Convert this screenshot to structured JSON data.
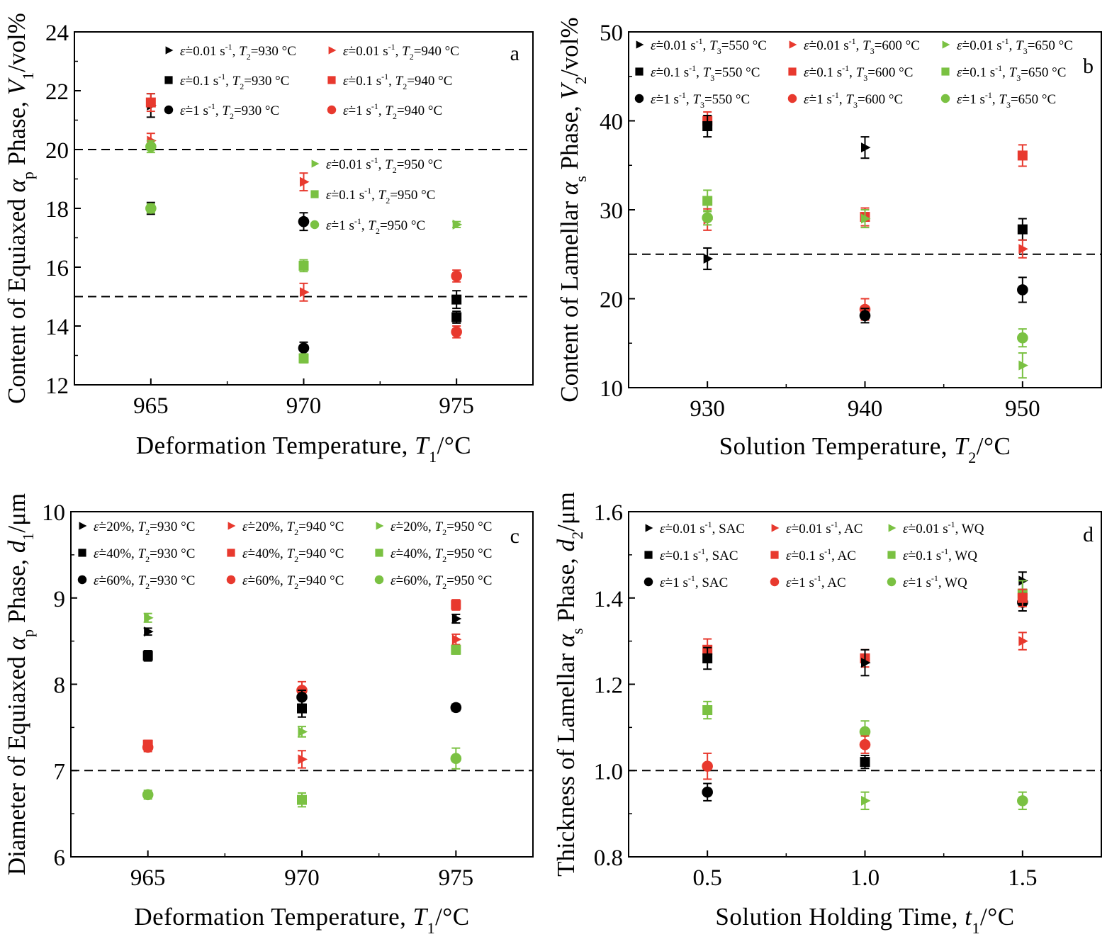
{
  "colors": {
    "black": "#000000",
    "red": "#e8392e",
    "green": "#7ac142",
    "blue": "#3f5fb3"
  },
  "chart_data": [
    {
      "panel": "a",
      "type": "scatter",
      "xlabel": {
        "main": "Deformation Temperature, ",
        "var": "T",
        "sub": "1",
        "unit": "/°C"
      },
      "ylabel": {
        "main": "Content of Equiaxed ",
        "phase": "α",
        "phase_sub": "p",
        "mid": " Phase, ",
        "var": "V",
        "sub": "1",
        "unit": "/vol%"
      },
      "x_ticks": [
        "965",
        "970",
        "975"
      ],
      "y_ticks": [
        "12",
        "14",
        "16",
        "18",
        "20",
        "22",
        "24"
      ],
      "xlim": [
        962.5,
        977.5
      ],
      "ylim": [
        12,
        24
      ],
      "ref_lines": [
        20,
        15
      ],
      "legend": [
        {
          "rate": "=0.01 s",
          "tail": ", T",
          "tsub": "2",
          "temp": "=930 °C",
          "color": "#000000",
          "marker": "triangle"
        },
        {
          "rate": "=0.01 s",
          "tail": ", T",
          "tsub": "2",
          "temp": "=940 °C",
          "color": "#e8392e",
          "marker": "triangle"
        },
        {
          "rate": "=0.1 s",
          "tail": ", T",
          "tsub": "2",
          "temp": "=930 °C",
          "color": "#000000",
          "marker": "square"
        },
        {
          "rate": "=0.1 s",
          "tail": ", T",
          "tsub": "2",
          "temp": "=940 °C",
          "color": "#e8392e",
          "marker": "square"
        },
        {
          "rate": "=1 s",
          "tail": ", T",
          "tsub": "2",
          "temp": "=930 °C",
          "color": "#000000",
          "marker": "circle"
        },
        {
          "rate": "=1 s",
          "tail": ", T",
          "tsub": "2",
          "temp": "=940 °C",
          "color": "#e8392e",
          "marker": "circle"
        },
        {
          "rate": "=0.01 s",
          "tail": ", T",
          "tsub": "2",
          "temp": "=950 °C",
          "color": "#7ac142",
          "marker": "triangle"
        },
        {
          "rate": "=0.1 s",
          "tail": ", T",
          "tsub": "2",
          "temp": "=950 °C",
          "color": "#7ac142",
          "marker": "square"
        },
        {
          "rate": "=1 s",
          "tail": ", T",
          "tsub": "2",
          "temp": "=950 °C",
          "color": "#7ac142",
          "marker": "circle"
        }
      ],
      "points": [
        {
          "x": 965,
          "y": 21.5,
          "err": 0.4,
          "color": "#000000",
          "marker": "triangle"
        },
        {
          "x": 965,
          "y": 21.6,
          "err": 0.3,
          "color": "#e8392e",
          "marker": "square"
        },
        {
          "x": 965,
          "y": 20.3,
          "err": 0.25,
          "color": "#e8392e",
          "marker": "triangle"
        },
        {
          "x": 965,
          "y": 20.1,
          "err": 0.2,
          "color": "#7ac142",
          "marker": "circle"
        },
        {
          "x": 965,
          "y": 18.0,
          "err": 0.2,
          "color": "#000000",
          "marker": "triangle"
        },
        {
          "x": 965,
          "y": 18.0,
          "err": 0.15,
          "color": "#7ac142",
          "marker": "circle"
        },
        {
          "x": 970,
          "y": 18.9,
          "err": 0.3,
          "color": "#e8392e",
          "marker": "triangle"
        },
        {
          "x": 970,
          "y": 17.55,
          "err": 0.3,
          "color": "#000000",
          "marker": "circle"
        },
        {
          "x": 970,
          "y": 16.05,
          "err": 0.2,
          "color": "#7ac142",
          "marker": "square"
        },
        {
          "x": 970,
          "y": 15.15,
          "err": 0.3,
          "color": "#e8392e",
          "marker": "triangle"
        },
        {
          "x": 970,
          "y": 13.25,
          "err": 0.2,
          "color": "#000000",
          "marker": "circle"
        },
        {
          "x": 970,
          "y": 12.9,
          "err": 0.15,
          "color": "#7ac142",
          "marker": "square"
        },
        {
          "x": 975,
          "y": 17.45,
          "err": 0.1,
          "color": "#7ac142",
          "marker": "triangle"
        },
        {
          "x": 975,
          "y": 15.7,
          "err": 0.2,
          "color": "#e8392e",
          "marker": "circle"
        },
        {
          "x": 975,
          "y": 14.9,
          "err": 0.3,
          "color": "#000000",
          "marker": "square"
        },
        {
          "x": 975,
          "y": 14.3,
          "err": 0.2,
          "color": "#000000",
          "marker": "square"
        },
        {
          "x": 975,
          "y": 13.8,
          "err": 0.2,
          "color": "#e8392e",
          "marker": "circle"
        }
      ]
    },
    {
      "panel": "b",
      "type": "scatter",
      "xlabel": {
        "main": "Solution Temperature, ",
        "var": "T",
        "sub": "2",
        "unit": "/°C"
      },
      "ylabel": {
        "main": "Content of Lamellar ",
        "phase": "α",
        "phase_sub": "s",
        "mid": " Phase, ",
        "var": "V",
        "sub": "2",
        "unit": "/vol%"
      },
      "x_ticks": [
        "930",
        "940",
        "950"
      ],
      "y_ticks": [
        "10",
        "20",
        "30",
        "40",
        "50"
      ],
      "xlim": [
        925,
        955
      ],
      "ylim": [
        10,
        50
      ],
      "ref_lines": [
        25
      ],
      "legend": [
        {
          "rate": "=0.01 s",
          "tail": ", T",
          "tsub": "3",
          "temp": "=550 °C",
          "color": "#000000",
          "marker": "triangle"
        },
        {
          "rate": "=0.01 s",
          "tail": ", T",
          "tsub": "3",
          "temp": "=600 °C",
          "color": "#e8392e",
          "marker": "triangle"
        },
        {
          "rate": "=0.01 s",
          "tail": ", T",
          "tsub": "3",
          "temp": "=650 °C",
          "color": "#7ac142",
          "marker": "triangle"
        },
        {
          "rate": "=0.1 s",
          "tail": ", T",
          "tsub": "3",
          "temp": "=550 °C",
          "color": "#000000",
          "marker": "square"
        },
        {
          "rate": "=0.1 s",
          "tail": ", T",
          "tsub": "3",
          "temp": "=600 °C",
          "color": "#e8392e",
          "marker": "square"
        },
        {
          "rate": "=0.1 s",
          "tail": ", T",
          "tsub": "3",
          "temp": "=650 °C",
          "color": "#7ac142",
          "marker": "square"
        },
        {
          "rate": "=1 s",
          "tail": ", T",
          "tsub": "3",
          "temp": "=550 °C",
          "color": "#000000",
          "marker": "circle"
        },
        {
          "rate": "=1 s",
          "tail": ", T",
          "tsub": "3",
          "temp": "=600 °C",
          "color": "#e8392e",
          "marker": "circle"
        },
        {
          "rate": "=1 s",
          "tail": ", T",
          "tsub": "3",
          "temp": "=650 °C",
          "color": "#7ac142",
          "marker": "circle"
        }
      ],
      "points": [
        {
          "x": 930,
          "y": 40.0,
          "err": 1.0,
          "color": "#e8392e",
          "marker": "square"
        },
        {
          "x": 930,
          "y": 39.4,
          "err": 1.2,
          "color": "#000000",
          "marker": "square"
        },
        {
          "x": 930,
          "y": 31.0,
          "err": 1.2,
          "color": "#7ac142",
          "marker": "square"
        },
        {
          "x": 930,
          "y": 28.9,
          "err": 1.2,
          "color": "#e8392e",
          "marker": "triangle"
        },
        {
          "x": 930,
          "y": 29.1,
          "err": 0.8,
          "color": "#7ac142",
          "marker": "circle"
        },
        {
          "x": 930,
          "y": 24.5,
          "err": 1.2,
          "color": "#000000",
          "marker": "triangle"
        },
        {
          "x": 940,
          "y": 37.0,
          "err": 1.2,
          "color": "#000000",
          "marker": "triangle"
        },
        {
          "x": 940,
          "y": 29.2,
          "err": 1.0,
          "color": "#e8392e",
          "marker": "square"
        },
        {
          "x": 940,
          "y": 29.0,
          "err": 1.0,
          "color": "#7ac142",
          "marker": "triangle"
        },
        {
          "x": 940,
          "y": 18.8,
          "err": 1.2,
          "color": "#e8392e",
          "marker": "circle"
        },
        {
          "x": 940,
          "y": 18.1,
          "err": 0.8,
          "color": "#000000",
          "marker": "circle"
        },
        {
          "x": 950,
          "y": 36.1,
          "err": 1.2,
          "color": "#e8392e",
          "marker": "square"
        },
        {
          "x": 950,
          "y": 27.8,
          "err": 1.2,
          "color": "#000000",
          "marker": "square"
        },
        {
          "x": 950,
          "y": 25.6,
          "err": 1.0,
          "color": "#e8392e",
          "marker": "triangle"
        },
        {
          "x": 950,
          "y": 21.0,
          "err": 1.4,
          "color": "#000000",
          "marker": "circle"
        },
        {
          "x": 950,
          "y": 15.6,
          "err": 1.0,
          "color": "#7ac142",
          "marker": "circle"
        },
        {
          "x": 950,
          "y": 12.5,
          "err": 1.4,
          "color": "#7ac142",
          "marker": "triangle"
        }
      ]
    },
    {
      "panel": "c",
      "type": "scatter",
      "xlabel": {
        "main": "Deformation Temperature, ",
        "var": "T",
        "sub": "1",
        "unit": "/°C"
      },
      "ylabel": {
        "main": "Diameter of Equiaxed ",
        "phase": "α",
        "phase_sub": "p",
        "mid": " Phase, ",
        "var": "d",
        "sub": "1",
        "unit": "/μm"
      },
      "x_ticks": [
        "965",
        "970",
        "975"
      ],
      "y_ticks": [
        "6",
        "7",
        "8",
        "9",
        "10"
      ],
      "xlim": [
        962.5,
        977.5
      ],
      "ylim": [
        6,
        10
      ],
      "ref_lines": [
        7
      ],
      "legend": [
        {
          "rate": "=20%",
          "tail": ", T",
          "tsub": "2",
          "temp": "=930 °C",
          "color": "#000000",
          "marker": "triangle"
        },
        {
          "rate": "=20%",
          "tail": ", T",
          "tsub": "2",
          "temp": "=940 °C",
          "color": "#e8392e",
          "marker": "triangle"
        },
        {
          "rate": "=20%",
          "tail": ", T",
          "tsub": "2",
          "temp": "=950 °C",
          "color": "#7ac142",
          "marker": "triangle"
        },
        {
          "rate": "=40%",
          "tail": ", T",
          "tsub": "2",
          "temp": "=930 °C",
          "color": "#000000",
          "marker": "square"
        },
        {
          "rate": "=40%",
          "tail": ", T",
          "tsub": "2",
          "temp": "=940 °C",
          "color": "#e8392e",
          "marker": "square"
        },
        {
          "rate": "=40%",
          "tail": ", T",
          "tsub": "2",
          "temp": "=950 °C",
          "color": "#7ac142",
          "marker": "square"
        },
        {
          "rate": "=60%",
          "tail": ", T",
          "tsub": "2",
          "temp": "=930 °C",
          "color": "#000000",
          "marker": "circle"
        },
        {
          "rate": "=60%",
          "tail": ", T",
          "tsub": "2",
          "temp": "=940 °C",
          "color": "#e8392e",
          "marker": "circle"
        },
        {
          "rate": "=60%",
          "tail": ", T",
          "tsub": "2",
          "temp": "=950 °C",
          "color": "#7ac142",
          "marker": "circle"
        }
      ],
      "points": [
        {
          "x": 965,
          "y": 8.77,
          "err": 0.05,
          "color": "#7ac142",
          "marker": "triangle"
        },
        {
          "x": 965,
          "y": 8.61,
          "err": 0.04,
          "color": "#000000",
          "marker": "triangle"
        },
        {
          "x": 965,
          "y": 8.33,
          "err": 0.06,
          "color": "#000000",
          "marker": "square"
        },
        {
          "x": 965,
          "y": 7.3,
          "err": 0.05,
          "color": "#e8392e",
          "marker": "square"
        },
        {
          "x": 965,
          "y": 7.27,
          "err": 0.05,
          "color": "#e8392e",
          "marker": "circle"
        },
        {
          "x": 965,
          "y": 6.72,
          "err": 0.05,
          "color": "#7ac142",
          "marker": "circle"
        },
        {
          "x": 970,
          "y": 7.93,
          "err": 0.1,
          "color": "#e8392e",
          "marker": "circle"
        },
        {
          "x": 970,
          "y": 7.85,
          "err": 0.08,
          "color": "#000000",
          "marker": "circle"
        },
        {
          "x": 970,
          "y": 7.72,
          "err": 0.1,
          "color": "#000000",
          "marker": "square"
        },
        {
          "x": 970,
          "y": 7.45,
          "err": 0.06,
          "color": "#7ac142",
          "marker": "triangle"
        },
        {
          "x": 970,
          "y": 7.13,
          "err": 0.1,
          "color": "#e8392e",
          "marker": "triangle"
        },
        {
          "x": 970,
          "y": 6.66,
          "err": 0.08,
          "color": "#7ac142",
          "marker": "square"
        },
        {
          "x": 975,
          "y": 8.92,
          "err": 0.06,
          "color": "#e8392e",
          "marker": "square"
        },
        {
          "x": 975,
          "y": 8.76,
          "err": 0.05,
          "color": "#000000",
          "marker": "triangle"
        },
        {
          "x": 975,
          "y": 8.52,
          "err": 0.06,
          "color": "#e8392e",
          "marker": "triangle"
        },
        {
          "x": 975,
          "y": 8.4,
          "err": 0.05,
          "color": "#7ac142",
          "marker": "square"
        },
        {
          "x": 975,
          "y": 7.73,
          "err": 0.04,
          "color": "#000000",
          "marker": "circle"
        },
        {
          "x": 975,
          "y": 7.14,
          "err": 0.12,
          "color": "#7ac142",
          "marker": "circle"
        }
      ]
    },
    {
      "panel": "d",
      "type": "scatter",
      "xlabel": {
        "main": "Solution Holding Time, ",
        "var": "t",
        "sub": "1",
        "unit": "/°C"
      },
      "ylabel": {
        "main": "Thickness of Lamellar ",
        "phase": "α",
        "phase_sub": "s",
        "mid": " Phase, ",
        "var": "d",
        "sub": "2",
        "unit": "/μm"
      },
      "x_ticks": [
        "0.5",
        "1.0",
        "1.5"
      ],
      "y_ticks": [
        "0.8",
        "1.0",
        "1.2",
        "1.4",
        "1.6"
      ],
      "xlim": [
        0.25,
        1.75
      ],
      "ylim": [
        0.8,
        1.6
      ],
      "ref_lines": [
        1.0
      ],
      "legend": [
        {
          "rate": "=0.01 s",
          "tail": ", SAC",
          "tsub": "",
          "temp": "",
          "color": "#000000",
          "marker": "triangle"
        },
        {
          "rate": "=0.01 s",
          "tail": ", AC",
          "tsub": "",
          "temp": "",
          "color": "#e8392e",
          "marker": "triangle"
        },
        {
          "rate": "=0.01 s",
          "tail": ", WQ",
          "tsub": "",
          "temp": "",
          "color": "#7ac142",
          "marker": "triangle"
        },
        {
          "rate": "=0.1 s",
          "tail": ", SAC",
          "tsub": "",
          "temp": "",
          "color": "#000000",
          "marker": "square"
        },
        {
          "rate": "=0.1 s",
          "tail": ", AC",
          "tsub": "",
          "temp": "",
          "color": "#e8392e",
          "marker": "square"
        },
        {
          "rate": "=0.1 s",
          "tail": ", WQ",
          "tsub": "",
          "temp": "",
          "color": "#7ac142",
          "marker": "square"
        },
        {
          "rate": "=1 s",
          "tail": ", SAC",
          "tsub": "",
          "temp": "",
          "color": "#000000",
          "marker": "circle"
        },
        {
          "rate": "=1 s",
          "tail": ", AC",
          "tsub": "",
          "temp": "",
          "color": "#e8392e",
          "marker": "circle"
        },
        {
          "rate": "=1 s",
          "tail": ", WQ",
          "tsub": "",
          "temp": "",
          "color": "#7ac142",
          "marker": "circle"
        }
      ],
      "points": [
        {
          "x": 0.5,
          "y": 1.28,
          "err": 0.025,
          "color": "#e8392e",
          "marker": "square"
        },
        {
          "x": 0.5,
          "y": 1.26,
          "err": 0.025,
          "color": "#000000",
          "marker": "square"
        },
        {
          "x": 0.5,
          "y": 1.14,
          "err": 0.02,
          "color": "#7ac142",
          "marker": "square"
        },
        {
          "x": 0.5,
          "y": 1.01,
          "err": 0.03,
          "color": "#e8392e",
          "marker": "circle"
        },
        {
          "x": 0.5,
          "y": 0.95,
          "err": 0.02,
          "color": "#000000",
          "marker": "circle"
        },
        {
          "x": 1.0,
          "y": 1.26,
          "err": 0.02,
          "color": "#e8392e",
          "marker": "square"
        },
        {
          "x": 1.0,
          "y": 1.25,
          "err": 0.03,
          "color": "#000000",
          "marker": "triangle"
        },
        {
          "x": 1.0,
          "y": 1.09,
          "err": 0.025,
          "color": "#7ac142",
          "marker": "circle"
        },
        {
          "x": 1.0,
          "y": 1.06,
          "err": 0.02,
          "color": "#e8392e",
          "marker": "circle"
        },
        {
          "x": 1.0,
          "y": 1.02,
          "err": 0.015,
          "color": "#000000",
          "marker": "square"
        },
        {
          "x": 1.0,
          "y": 0.93,
          "err": 0.02,
          "color": "#7ac142",
          "marker": "triangle"
        },
        {
          "x": 1.5,
          "y": 1.44,
          "err": 0.02,
          "color": "#000000",
          "marker": "triangle"
        },
        {
          "x": 1.5,
          "y": 1.41,
          "err": 0.03,
          "color": "#7ac142",
          "marker": "square"
        },
        {
          "x": 1.5,
          "y": 1.39,
          "err": 0.02,
          "color": "#000000",
          "marker": "circle"
        },
        {
          "x": 1.5,
          "y": 1.4,
          "err": 0.02,
          "color": "#e8392e",
          "marker": "square"
        },
        {
          "x": 1.5,
          "y": 1.3,
          "err": 0.02,
          "color": "#e8392e",
          "marker": "triangle"
        },
        {
          "x": 1.5,
          "y": 0.93,
          "err": 0.02,
          "color": "#7ac142",
          "marker": "circle"
        }
      ]
    }
  ]
}
